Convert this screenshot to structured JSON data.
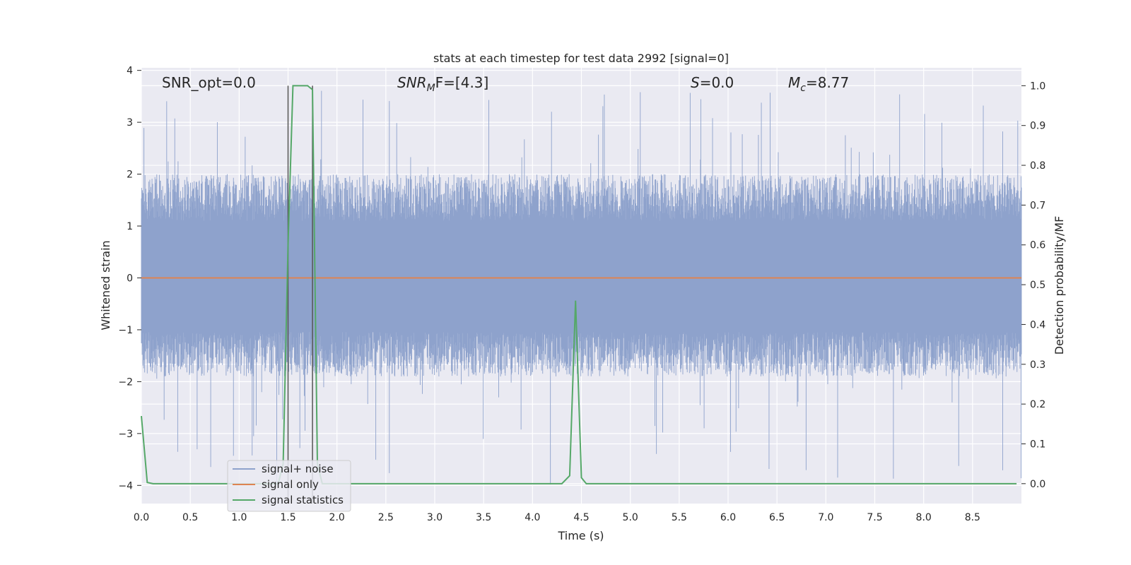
{
  "chart_data": {
    "type": "line",
    "title": "stats at each timestep for test data 2992 [signal=0]",
    "xlabel": "Time (s)",
    "ylabel_left": "Whitened strain",
    "ylabel_right": "Detection probability/MF",
    "xlim": [
      0.0,
      9.0
    ],
    "ylim_left": [
      -4.35,
      4.05
    ],
    "ylim_right": [
      -0.05,
      1.045
    ],
    "x_ticks": [
      "0.0",
      "0.5",
      "1.0",
      "1.5",
      "2.0",
      "2.5",
      "3.0",
      "3.5",
      "4.0",
      "4.5",
      "5.0",
      "5.5",
      "6.0",
      "6.5",
      "7.0",
      "7.5",
      "8.0",
      "8.5"
    ],
    "y_ticks_left": [
      "−4",
      "−3",
      "−2",
      "−1",
      "0",
      "1",
      "2",
      "3",
      "4"
    ],
    "y_ticks_right": [
      "0.0",
      "0.1",
      "0.2",
      "0.3",
      "0.4",
      "0.5",
      "0.6",
      "0.7",
      "0.8",
      "0.9",
      "1.0"
    ],
    "grid": true,
    "legend_position": "lower-left",
    "annotations": {
      "snr_opt": "SNR_opt=0.0",
      "snr_mf_main": "SNR",
      "snr_mf_sub": "M",
      "snr_mf_rest": "F=[4.3]",
      "s_main": "S",
      "s_rest": "=0.0",
      "mc_main": "M",
      "mc_sub": "c",
      "mc_rest": "=8.77"
    },
    "vertical_markers": [
      1.5,
      1.75
    ],
    "noise_summary": {
      "typical_min": -1.9,
      "typical_max": 2.0,
      "peak_max": 3.65,
      "peak_min": -4.0
    },
    "series": [
      {
        "name": "signal+ noise",
        "axis": "left",
        "color": "#8ea2cc",
        "description_values": "dense whitened noise between roughly -2 and 2.5 with spikes to ~3.6 and ~-4.0"
      },
      {
        "name": "signal only",
        "axis": "left",
        "color": "#dd8452",
        "x": [
          0.0,
          9.0
        ],
        "y": [
          0.0,
          0.0
        ]
      },
      {
        "name": "signal statistics",
        "axis": "right",
        "color": "#55a868",
        "x": [
          0.0,
          0.06,
          0.12,
          1.4,
          1.45,
          1.5,
          1.55,
          1.6,
          1.7,
          1.75,
          1.8,
          1.85,
          4.3,
          4.38,
          4.44,
          4.5,
          4.55,
          8.95
        ],
        "y": [
          0.17,
          0.003,
          0.0,
          0.0,
          0.05,
          0.6,
          1.0,
          1.0,
          1.0,
          0.99,
          0.05,
          0.0,
          0.0,
          0.02,
          0.46,
          0.015,
          0.0,
          0.0
        ]
      }
    ]
  },
  "legend": {
    "items": [
      {
        "label": "signal+ noise",
        "color": "#8ea2cc"
      },
      {
        "label": "signal only",
        "color": "#dd8452"
      },
      {
        "label": "signal statistics",
        "color": "#55a868"
      }
    ]
  },
  "colors": {
    "axes_background": "#eaeaf2",
    "grid": "#ffffff",
    "marker_line": "#555555"
  }
}
